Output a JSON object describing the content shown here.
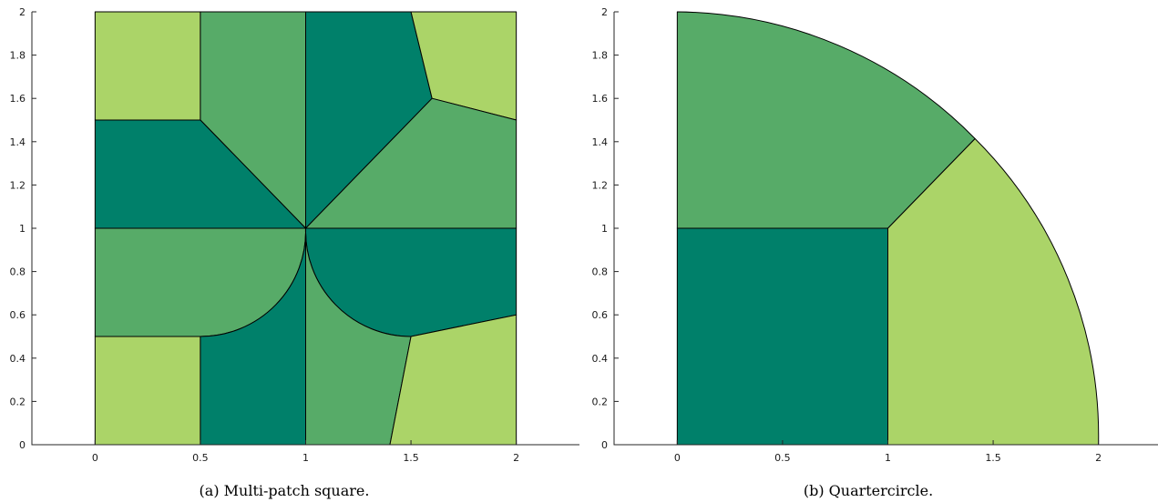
{
  "colors": {
    "dark": "#00806a",
    "mid": "#57ab68",
    "light": "#abd468",
    "stroke": "#000000"
  },
  "chart_data": [
    {
      "type": "patch",
      "caption": "(a) Multi-patch square.",
      "xlim": [
        -0.3,
        2.3
      ],
      "ylim": [
        0,
        2
      ],
      "x_ticks": [
        "0",
        "0.5",
        "1",
        "1.5",
        "2"
      ],
      "y_ticks": [
        "0",
        "0.2",
        "0.4",
        "0.6",
        "0.8",
        "1",
        "1.2",
        "1.4",
        "1.6",
        "1.8",
        "2"
      ],
      "patches": [
        {
          "color": "light",
          "points": [
            [
              0,
              1.5
            ],
            [
              0.5,
              1.5
            ],
            [
              0.5,
              2
            ],
            [
              0,
              2
            ]
          ]
        },
        {
          "color": "mid",
          "points": [
            [
              0.5,
              1.5
            ],
            [
              0.5,
              2
            ],
            [
              1,
              2
            ],
            [
              1,
              1
            ]
          ]
        },
        {
          "color": "dark",
          "points": [
            [
              1,
              1
            ],
            [
              1,
              2
            ],
            [
              1.5,
              2
            ],
            [
              1.6,
              1.6
            ]
          ]
        },
        {
          "color": "light",
          "points": [
            [
              1.5,
              2
            ],
            [
              2,
              2
            ],
            [
              2,
              1.5
            ],
            [
              1.6,
              1.6
            ]
          ]
        },
        {
          "color": "dark",
          "points": [
            [
              0,
              1
            ],
            [
              0,
              1.5
            ],
            [
              0.5,
              1.5
            ],
            [
              1,
              1
            ]
          ]
        },
        {
          "color": "mid",
          "points": [
            [
              1,
              1
            ],
            [
              1.6,
              1.6
            ],
            [
              2,
              1.5
            ],
            [
              2,
              1
            ]
          ]
        },
        {
          "color": "mid",
          "points": [
            [
              0,
              0.5
            ],
            [
              0,
              1
            ],
            [
              1,
              1
            ],
            [
              0.5,
              0.5
            ]
          ],
          "arc_from": [
            1,
            1
          ],
          "arc_to": [
            0.5,
            0.5
          ],
          "arc_center": [
            0.5,
            1
          ],
          "arc_radius": 0.5
        },
        {
          "color": "dark",
          "points": [
            [
              1,
              1
            ],
            [
              2,
              1
            ],
            [
              2,
              0.6
            ],
            [
              1.5,
              0.5
            ]
          ],
          "arc_from": [
            1.5,
            0.5
          ],
          "arc_to": [
            1,
            1
          ],
          "arc_center": [
            1.5,
            1
          ],
          "arc_radius": 0.5
        },
        {
          "color": "light",
          "points": [
            [
              0,
              0
            ],
            [
              0.5,
              0
            ],
            [
              0.5,
              0.5
            ],
            [
              0,
              0.5
            ]
          ]
        },
        {
          "color": "dark",
          "points": [
            [
              0.5,
              0
            ],
            [
              1,
              0
            ],
            [
              1,
              1
            ],
            [
              0.5,
              0.5
            ]
          ],
          "arc_from": [
            1,
            1
          ],
          "arc_to": [
            0.5,
            0.5
          ],
          "arc_center": [
            0.5,
            1
          ],
          "arc_radius": 0.5
        },
        {
          "color": "mid",
          "points": [
            [
              1,
              0
            ],
            [
              1.4,
              0
            ],
            [
              1.5,
              0.5
            ],
            [
              1,
              1
            ]
          ],
          "arc_from": [
            1.5,
            0.5
          ],
          "arc_to": [
            1,
            1
          ],
          "arc_center": [
            1.5,
            1
          ],
          "arc_radius": 0.5
        },
        {
          "color": "light",
          "points": [
            [
              1.4,
              0
            ],
            [
              2,
              0
            ],
            [
              2,
              0.6
            ],
            [
              1.5,
              0.5
            ]
          ]
        }
      ]
    },
    {
      "type": "patch",
      "caption": "(b) Quartercircle.",
      "xlim": [
        -0.3,
        2.3
      ],
      "ylim": [
        0,
        2
      ],
      "x_ticks": [
        "0",
        "0.5",
        "1",
        "1.5",
        "2"
      ],
      "y_ticks": [
        "0",
        "0.2",
        "0.4",
        "0.6",
        "0.8",
        "1",
        "1.2",
        "1.4",
        "1.6",
        "1.8",
        "2"
      ],
      "patches": [
        {
          "color": "dark",
          "points": [
            [
              0,
              0
            ],
            [
              1,
              0
            ],
            [
              1,
              1
            ],
            [
              0,
              1
            ]
          ]
        },
        {
          "color": "mid",
          "points": [
            [
              0,
              1
            ],
            [
              0,
              2
            ],
            [
              1.414,
              1.414
            ],
            [
              1,
              1
            ]
          ],
          "arc_from": [
            0,
            2
          ],
          "arc_to": [
            1.414,
            1.414
          ],
          "arc_center": [
            0,
            0
          ],
          "arc_radius": 2
        },
        {
          "color": "light",
          "points": [
            [
              1,
              0
            ],
            [
              2,
              0
            ],
            [
              1.414,
              1.414
            ],
            [
              1,
              1
            ]
          ],
          "arc_from": [
            2,
            0
          ],
          "arc_to": [
            1.414,
            1.414
          ],
          "arc_center": [
            0,
            0
          ],
          "arc_radius": 2
        }
      ]
    }
  ]
}
